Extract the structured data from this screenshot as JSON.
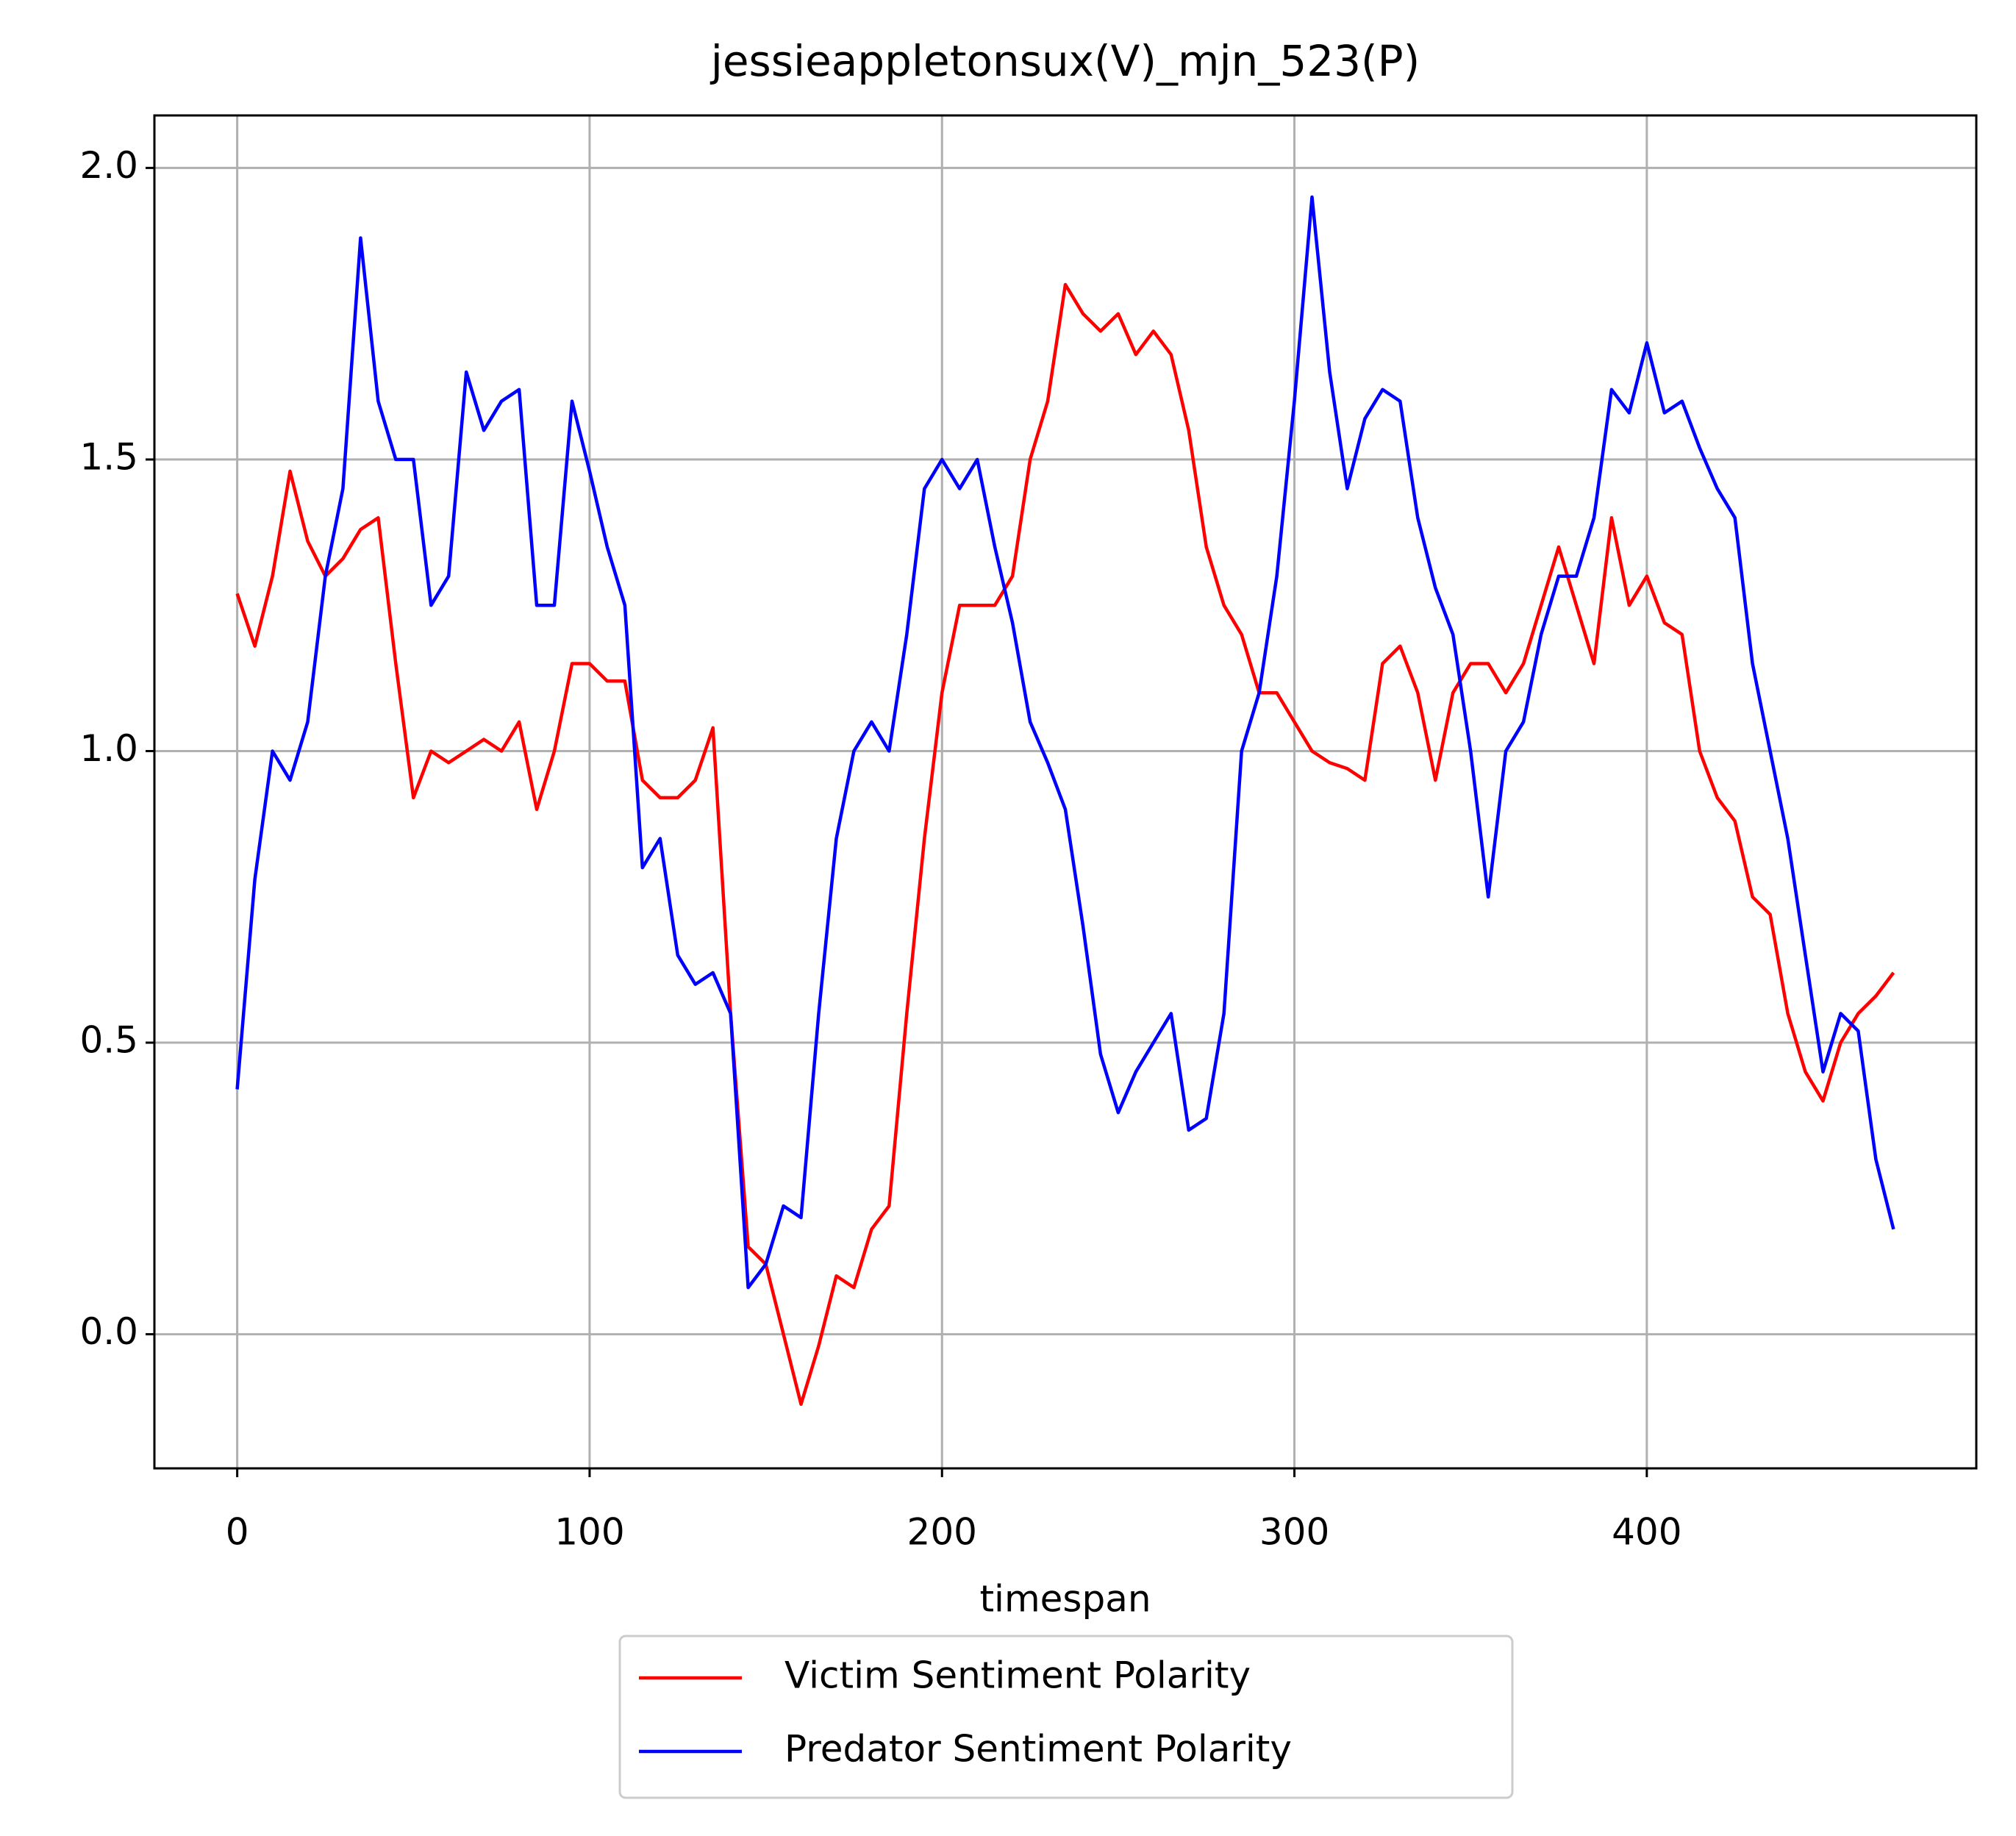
{
  "chart_data": {
    "type": "line",
    "title": "jessieappletonsux(V)_mjn_523(P)",
    "x_label": "timespan",
    "x": [
      0,
      5,
      10,
      15,
      20,
      25,
      30,
      35,
      40,
      45,
      50,
      55,
      60,
      65,
      70,
      75,
      80,
      85,
      90,
      95,
      100,
      105,
      110,
      115,
      120,
      125,
      130,
      135,
      140,
      145,
      150,
      155,
      160,
      165,
      170,
      175,
      180,
      185,
      190,
      195,
      200,
      205,
      210,
      215,
      220,
      225,
      230,
      235,
      240,
      245,
      250,
      255,
      260,
      265,
      270,
      275,
      280,
      285,
      290,
      295,
      300,
      305,
      310,
      315,
      320,
      325,
      330,
      335,
      340,
      345,
      350,
      355,
      360,
      365,
      370,
      375,
      380,
      385,
      390,
      395,
      400,
      405,
      410,
      415,
      420,
      425,
      430,
      435,
      440,
      445,
      450,
      455,
      460,
      465,
      470
    ],
    "series": [
      {
        "name": "Victim Sentiment Polarity",
        "color": "#ff0000",
        "values": [
          1.27,
          1.18,
          1.3,
          1.48,
          1.36,
          1.3,
          1.33,
          1.38,
          1.4,
          1.15,
          0.92,
          1.0,
          0.98,
          1.0,
          1.02,
          1.0,
          1.05,
          0.9,
          1.0,
          1.15,
          1.15,
          1.12,
          1.12,
          0.95,
          0.92,
          0.92,
          0.95,
          1.04,
          0.55,
          0.15,
          0.12,
          0.0,
          -0.12,
          -0.02,
          0.1,
          0.08,
          0.18,
          0.22,
          0.55,
          0.85,
          1.1,
          1.25,
          1.25,
          1.25,
          1.3,
          1.5,
          1.6,
          1.8,
          1.75,
          1.72,
          1.75,
          1.68,
          1.72,
          1.68,
          1.55,
          1.35,
          1.25,
          1.2,
          1.1,
          1.1,
          1.05,
          1.0,
          0.98,
          0.97,
          0.95,
          1.15,
          1.18,
          1.1,
          0.95,
          1.1,
          1.15,
          1.15,
          1.1,
          1.15,
          1.25,
          1.35,
          1.25,
          1.15,
          1.4,
          1.25,
          1.3,
          1.22,
          1.2,
          1.0,
          0.92,
          0.88,
          0.75,
          0.72,
          0.55,
          0.45,
          0.4,
          0.5,
          0.55,
          0.58,
          0.62
        ]
      },
      {
        "name": "Predator Sentiment Polarity",
        "color": "#0000ff",
        "values": [
          0.42,
          0.78,
          1.0,
          0.95,
          1.05,
          1.3,
          1.45,
          1.88,
          1.6,
          1.5,
          1.5,
          1.25,
          1.3,
          1.65,
          1.55,
          1.6,
          1.62,
          1.25,
          1.25,
          1.6,
          1.48,
          1.35,
          1.25,
          0.8,
          0.85,
          0.65,
          0.6,
          0.62,
          0.55,
          0.08,
          0.12,
          0.22,
          0.2,
          0.55,
          0.85,
          1.0,
          1.05,
          1.0,
          1.2,
          1.45,
          1.5,
          1.45,
          1.5,
          1.35,
          1.22,
          1.05,
          0.98,
          0.9,
          0.7,
          0.48,
          0.38,
          0.45,
          0.5,
          0.55,
          0.35,
          0.37,
          0.55,
          1.0,
          1.1,
          1.3,
          1.6,
          1.95,
          1.65,
          1.45,
          1.57,
          1.62,
          1.6,
          1.4,
          1.28,
          1.2,
          1.0,
          0.75,
          1.0,
          1.05,
          1.2,
          1.3,
          1.3,
          1.4,
          1.62,
          1.58,
          1.7,
          1.58,
          1.6,
          1.52,
          1.45,
          1.4,
          1.15,
          1.0,
          0.85,
          0.65,
          0.45,
          0.55,
          0.52,
          0.3,
          0.18
        ]
      }
    ],
    "xlim": [
      -23.5,
      493.5
    ],
    "ylim": [
      -0.23,
      2.09
    ],
    "xticks": [
      0,
      100,
      200,
      300,
      400
    ],
    "yticks": [
      {
        "value": 0,
        "label": "0.0"
      },
      0.5,
      {
        "value": 1,
        "label": "1.0"
      },
      1.5,
      {
        "value": 2,
        "label": "2.0"
      }
    ],
    "grid": true,
    "legend": "below"
  }
}
